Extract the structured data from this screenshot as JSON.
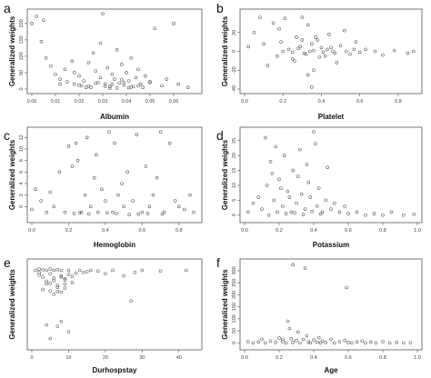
{
  "chart_data": [
    {
      "panel": "a",
      "type": "scatter",
      "xlabel": "Albumin",
      "ylabel": "Generalized weights",
      "xlim": [
        0,
        0.07
      ],
      "ylim": [
        0,
        230
      ],
      "x_ticks": [
        "0.00",
        "0.01",
        "0.02",
        "0.03",
        "0.04",
        "0.05",
        "0.06"
      ],
      "y_ticks": [
        "0",
        "50",
        "100",
        "150",
        "200"
      ],
      "x": [
        0.0,
        0.002,
        0.004,
        0.005,
        0.006,
        0.008,
        0.01,
        0.012,
        0.014,
        0.015,
        0.017,
        0.018,
        0.02,
        0.021,
        0.022,
        0.024,
        0.025,
        0.026,
        0.027,
        0.028,
        0.029,
        0.03,
        0.031,
        0.032,
        0.033,
        0.034,
        0.035,
        0.036,
        0.037,
        0.038,
        0.039,
        0.04,
        0.041,
        0.042,
        0.043,
        0.044,
        0.045,
        0.046,
        0.048,
        0.05,
        0.052,
        0.055,
        0.057,
        0.06,
        0.062,
        0.066,
        0.02,
        0.023,
        0.027,
        0.031,
        0.034,
        0.036,
        0.039,
        0.042,
        0.045,
        0.029,
        0.033,
        0.038,
        0.041,
        0.024,
        0.018,
        0.012,
        0.047,
        0.05
      ],
      "y": [
        200,
        222,
        145,
        210,
        95,
        70,
        45,
        30,
        60,
        22,
        85,
        15,
        40,
        10,
        25,
        80,
        5,
        110,
        55,
        20,
        35,
        230,
        15,
        65,
        8,
        45,
        30,
        120,
        18,
        75,
        12,
        50,
        25,
        95,
        8,
        35,
        60,
        15,
        40,
        20,
        185,
        10,
        30,
        200,
        15,
        5,
        12,
        5,
        18,
        8,
        14,
        3,
        20,
        6,
        10,
        140,
        2,
        28,
        4,
        9,
        50,
        15,
        5,
        22
      ]
    },
    {
      "panel": "b",
      "type": "scatter",
      "xlabel": "Platelet",
      "ylabel": "Generalized weights",
      "xlim": [
        0,
        0.9
      ],
      "ylim": [
        -40,
        40
      ],
      "x_ticks": [
        "0.0",
        "0.2",
        "0.4",
        "0.6",
        "0.8"
      ],
      "y_ticks": [
        "-40",
        "-20",
        "0",
        "20"
      ],
      "x": [
        0.02,
        0.05,
        0.08,
        0.1,
        0.12,
        0.15,
        0.17,
        0.19,
        0.21,
        0.23,
        0.25,
        0.27,
        0.29,
        0.3,
        0.31,
        0.33,
        0.34,
        0.35,
        0.36,
        0.38,
        0.4,
        0.42,
        0.44,
        0.46,
        0.48,
        0.5,
        0.52,
        0.55,
        0.58,
        0.6,
        0.63,
        0.68,
        0.72,
        0.78,
        0.85,
        0.88,
        0.25,
        0.28,
        0.32,
        0.36,
        0.39,
        0.43,
        0.47,
        0.2,
        0.3,
        0.35,
        0.41,
        0.45,
        0.53,
        0.57,
        0.18,
        0.26,
        0.33,
        0.37
      ],
      "y": [
        5,
        20,
        36,
        8,
        -15,
        30,
        -5,
        10,
        35,
        2,
        -8,
        15,
        5,
        36,
        -2,
        28,
        0,
        8,
        -20,
        12,
        4,
        -5,
        18,
        0,
        -12,
        6,
        22,
        -3,
        10,
        -1,
        2,
        0,
        -4,
        1,
        -2,
        0,
        -1,
        3,
        -3,
        1,
        -6,
        2,
        -2,
        0,
        12,
        -38,
        -1,
        4,
        0,
        2,
        24,
        -10,
        -25,
        15
      ]
    },
    {
      "panel": "c",
      "type": "scatter",
      "xlabel": "Hemoglobin",
      "ylabel": "Generalized weights",
      "xlim": [
        0,
        0.9
      ],
      "ylim": [
        -2,
        13
      ],
      "x_ticks": [
        "0.0",
        "0.2",
        "0.4",
        "0.6",
        "0.8"
      ],
      "y_ticks": [
        "0",
        "2",
        "4",
        "6",
        "8",
        "10",
        "12"
      ],
      "x": [
        0.0,
        0.02,
        0.05,
        0.08,
        0.1,
        0.12,
        0.15,
        0.18,
        0.2,
        0.22,
        0.24,
        0.25,
        0.27,
        0.29,
        0.3,
        0.32,
        0.34,
        0.35,
        0.36,
        0.38,
        0.4,
        0.42,
        0.44,
        0.45,
        0.47,
        0.49,
        0.5,
        0.52,
        0.55,
        0.57,
        0.6,
        0.62,
        0.64,
        0.66,
        0.68,
        0.7,
        0.72,
        0.75,
        0.78,
        0.8,
        0.83,
        0.86,
        0.88,
        0.23,
        0.31,
        0.41,
        0.53,
        0.63,
        0.71,
        0.26,
        0.46,
        0.58
      ],
      "y": [
        -0.5,
        3,
        1,
        -1,
        2.5,
        0,
        6,
        -1,
        10.5,
        7,
        11,
        8,
        -1,
        2,
        12,
        0,
        5,
        9,
        -1,
        3,
        1,
        13,
        -1,
        11,
        2,
        4,
        0,
        6,
        1,
        12.5,
        -1,
        7,
        0,
        2,
        5,
        13,
        -1,
        11,
        1,
        0,
        -0.5,
        2,
        -1,
        -1.2,
        -1.3,
        -1.1,
        -1.4,
        -1.2,
        -1.3,
        -1.1,
        -1.2,
        -1.3
      ]
    },
    {
      "panel": "d",
      "type": "scatter",
      "xlabel": "Potassium",
      "ylabel": "Generalized weights",
      "xlim": [
        0,
        1.0
      ],
      "ylim": [
        -1,
        28
      ],
      "x_ticks": [
        "0.0",
        "0.2",
        "0.4",
        "0.6",
        "0.8",
        "1.0"
      ],
      "y_ticks": [
        "0",
        "5",
        "10",
        "15",
        "20",
        "25"
      ],
      "x": [
        0.02,
        0.05,
        0.08,
        0.1,
        0.12,
        0.13,
        0.15,
        0.17,
        0.18,
        0.2,
        0.22,
        0.23,
        0.25,
        0.27,
        0.28,
        0.3,
        0.32,
        0.33,
        0.35,
        0.37,
        0.38,
        0.4,
        0.42,
        0.43,
        0.45,
        0.47,
        0.5,
        0.52,
        0.55,
        0.58,
        0.6,
        0.65,
        0.7,
        0.75,
        0.8,
        0.85,
        0.92,
        0.98,
        0.14,
        0.19,
        0.24,
        0.29,
        0.34,
        0.39,
        0.44,
        0.16,
        0.21,
        0.31,
        0.36,
        0.41,
        0.48,
        0.26
      ],
      "y": [
        1,
        4,
        6,
        2,
        26,
        10,
        18,
        5,
        23,
        12,
        3,
        20,
        8,
        1,
        15,
        4,
        22,
        7,
        2,
        11,
        6,
        28,
        3,
        9,
        1,
        5,
        2,
        4,
        1,
        3,
        0.5,
        1,
        0,
        0.5,
        0,
        1,
        0,
        0.3,
        0,
        1,
        0.5,
        0.8,
        0.2,
        1.2,
        0.4,
        14,
        9,
        13,
        17,
        24,
        16,
        6
      ]
    },
    {
      "panel": "e",
      "type": "scatter",
      "xlabel": "Durhospstay",
      "ylabel": "Generalized weights",
      "xlim": [
        0,
        45
      ],
      "ylim": [
        -11,
        1
      ],
      "x_ticks": [
        "0",
        "10",
        "20",
        "30",
        "40"
      ],
      "y_ticks": [],
      "x": [
        1,
        2,
        2,
        3,
        3,
        4,
        4,
        5,
        5,
        5,
        6,
        6,
        7,
        7,
        8,
        8,
        8,
        9,
        9,
        10,
        10,
        11,
        12,
        13,
        14,
        15,
        16,
        18,
        20,
        22,
        25,
        28,
        30,
        35,
        42,
        3,
        4,
        6,
        7,
        8,
        9,
        11,
        2,
        5,
        6,
        7,
        9,
        4,
        5,
        8,
        27,
        10,
        7
      ],
      "y": [
        0,
        -0.3,
        0.2,
        -1,
        0.1,
        -2,
        0,
        -0.5,
        -3,
        0.2,
        -1.5,
        0,
        -2.5,
        0.1,
        -0.8,
        -3.2,
        0,
        -1.2,
        -2,
        0,
        -0.6,
        -1.8,
        -0.4,
        0,
        -0.3,
        -0.2,
        0,
        -0.1,
        -0.5,
        0,
        -0.8,
        -0.3,
        0,
        -0.1,
        0,
        -2.8,
        -1.6,
        -3.5,
        -2.2,
        -1,
        -2.6,
        -0.9,
        -0.7,
        -1.9,
        -1.1,
        -3.1,
        -1.4,
        -8,
        -10,
        -7.5,
        -4.5,
        -9,
        -8.2
      ]
    },
    {
      "panel": "f",
      "type": "scatter",
      "xlabel": "Age",
      "ylabel": "Generalized weights",
      "xlim": [
        0,
        1.0
      ],
      "ylim": [
        -10,
        330
      ],
      "x_ticks": [
        "0.0",
        "0.2",
        "0.4",
        "0.6",
        "0.8",
        "1.0"
      ],
      "y_ticks": [
        "0",
        "50",
        "100",
        "150",
        "200",
        "250",
        "300"
      ],
      "x": [
        0.02,
        0.05,
        0.08,
        0.1,
        0.12,
        0.15,
        0.18,
        0.2,
        0.22,
        0.24,
        0.25,
        0.27,
        0.28,
        0.3,
        0.32,
        0.34,
        0.35,
        0.37,
        0.38,
        0.4,
        0.42,
        0.44,
        0.45,
        0.47,
        0.5,
        0.52,
        0.55,
        0.58,
        0.6,
        0.62,
        0.65,
        0.68,
        0.7,
        0.73,
        0.76,
        0.8,
        0.84,
        0.88,
        0.92,
        0.96,
        0.26,
        0.36,
        0.59,
        0.28,
        0.22,
        0.31,
        0.43
      ],
      "y": [
        5,
        0,
        3,
        15,
        0,
        8,
        2,
        20,
        5,
        0,
        90,
        18,
        2,
        10,
        0,
        14,
        310,
        4,
        0,
        12,
        3,
        0,
        8,
        2,
        15,
        0,
        5,
        10,
        2,
        0,
        4,
        8,
        0,
        3,
        0,
        5,
        0,
        2,
        0,
        1,
        60,
        30,
        230,
        325,
        15,
        45,
        22
      ]
    }
  ],
  "panel_letters": [
    "a",
    "b",
    "c",
    "d",
    "e",
    "f"
  ]
}
